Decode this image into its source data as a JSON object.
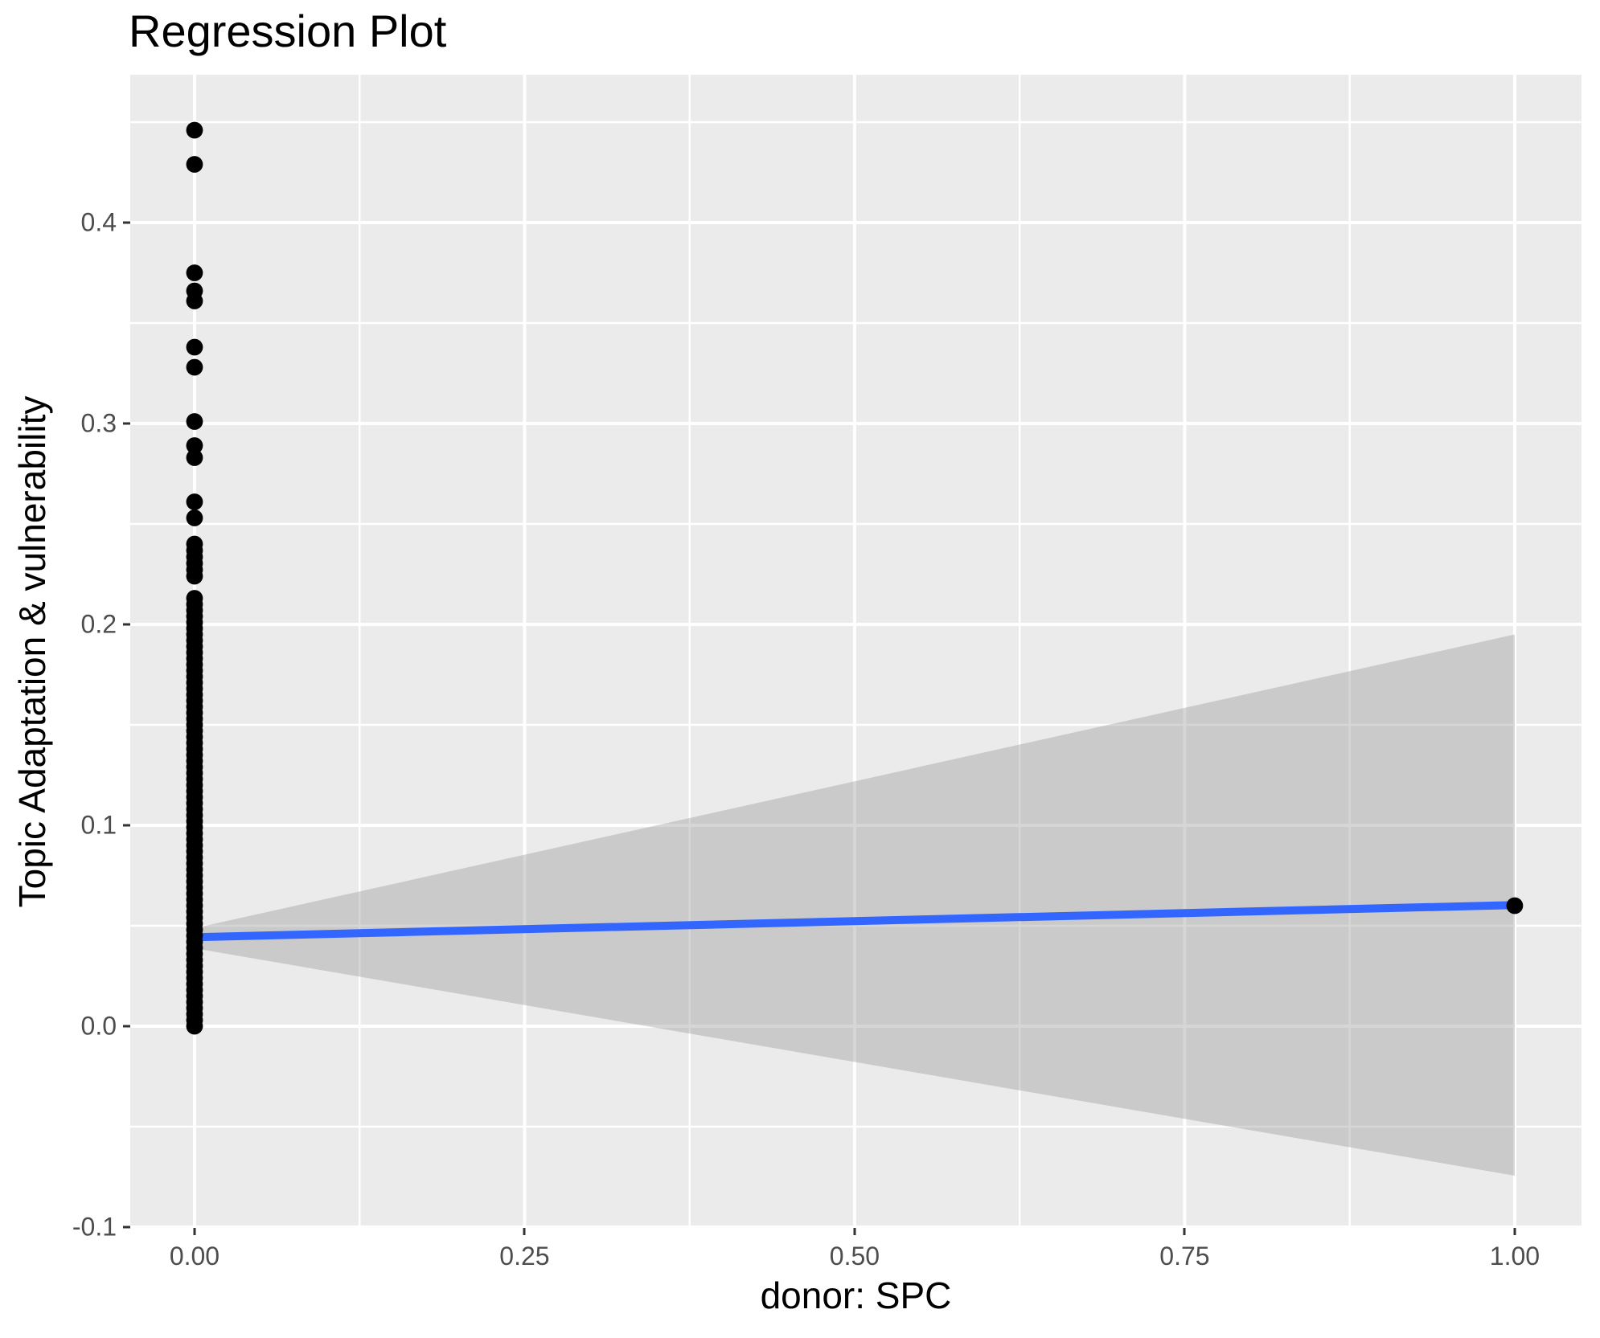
{
  "page": {
    "background": "#FFFFFF"
  },
  "chart_data": {
    "type": "scatter",
    "title": "Regression Plot",
    "xlabel": "donor: SPC",
    "ylabel": "Topic Adaptation & vulnerability",
    "legend": "none",
    "grid": true,
    "x_axis": {
      "domain": [
        -0.0487,
        1.0506
      ],
      "ticks": [
        {
          "value": 0.0,
          "label": "0.00"
        },
        {
          "value": 0.25,
          "label": "0.25"
        },
        {
          "value": 0.5,
          "label": "0.50"
        },
        {
          "value": 0.75,
          "label": "0.75"
        },
        {
          "value": 1.0,
          "label": "1.00"
        }
      ],
      "minor_ticks": [
        0.125,
        0.375,
        0.625,
        0.875
      ]
    },
    "y_axis": {
      "domain": [
        -0.1004,
        0.4736
      ],
      "ticks": [
        {
          "value": -0.1,
          "label": "-0.1"
        },
        {
          "value": 0.0,
          "label": "0.0"
        },
        {
          "value": 0.1,
          "label": "0.1"
        },
        {
          "value": 0.2,
          "label": "0.2"
        },
        {
          "value": 0.3,
          "label": "0.3"
        },
        {
          "value": 0.4,
          "label": "0.4"
        }
      ],
      "minor_ticks": [
        -0.05,
        0.05,
        0.15,
        0.25,
        0.35,
        0.45
      ]
    },
    "points": {
      "x0_column": {
        "x": 0,
        "y_discrete": [
          0.253,
          0.261,
          0.283,
          0.289,
          0.301,
          0.328,
          0.338,
          0.361,
          0.366,
          0.375,
          0.429,
          0.446
        ],
        "y_dense_runs": [
          {
            "from": 0.0,
            "to": 0.215,
            "step": 0.003
          },
          {
            "from": 0.224,
            "to": 0.243,
            "step": 0.0032
          }
        ]
      },
      "other": [
        {
          "x": 1.0,
          "y": 0.06
        }
      ]
    },
    "regression_line": {
      "start": [
        0.0,
        0.0443
      ],
      "end": [
        1.0,
        0.0603
      ]
    },
    "confidence_band": {
      "upper": [
        [
          0.0,
          0.0488
        ],
        [
          1.0,
          0.195
        ]
      ],
      "lower": [
        [
          0.0,
          0.0388
        ],
        [
          1.0,
          -0.0744
        ]
      ]
    },
    "style": {
      "panel_bg": "#EBEBEB",
      "grid_color": "#FFFFFF",
      "grid_major_width": 4,
      "grid_minor_width": 2.5,
      "point_color": "#000000",
      "point_radius": 10.4,
      "line_color": "#3366FF",
      "line_width": 10,
      "band_color": "#999999",
      "band_alpha": 0.4,
      "tick_label_color": "#4D4D4D",
      "tick_mark_color": "#333333",
      "text_color": "#000000"
    }
  }
}
